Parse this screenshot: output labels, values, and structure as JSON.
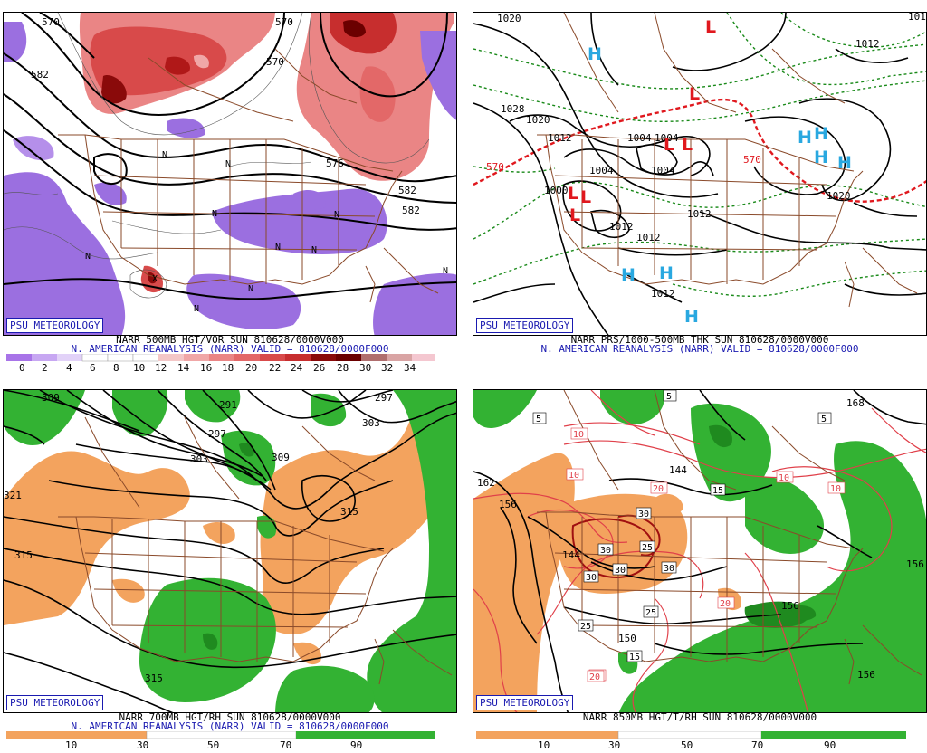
{
  "colors": {
    "positive_vort": [
      "#f4c7c7",
      "#f0a7a7",
      "#ea8585",
      "#e36868",
      "#d84a4a",
      "#c72e2e",
      "#b01818",
      "#8a0a0a",
      "#6b0000",
      "#d9a4a4",
      "#e6bcbc",
      "#f4d6d6"
    ],
    "negative_vort": "#9b6fe0",
    "rh_dry": "#f3a35e",
    "rh_moist": "#33b233",
    "rh_very_moist": "#1f8a1f",
    "border": "#8a4a2a",
    "label_blue": "#1a1ab0",
    "high": "#29a8e0",
    "low": "#e0181e",
    "thickness": "#1a8a1a"
  },
  "panels": [
    {
      "id": "vort500",
      "badge": "PSU METEOROLOGY",
      "title_line1": "NARR 500MB HGT/VOR SUN 810628/0000V000",
      "title_line2": "N. AMERICAN REANALYSIS (NARR) VALID = 810628/0000F000",
      "colorbar_labels": [
        "0",
        "2",
        "4",
        "6",
        "8",
        "10",
        "12",
        "14",
        "16",
        "18",
        "20",
        "22",
        "24",
        "26",
        "28",
        "30",
        "32",
        "34"
      ],
      "contour_labels": [
        "570",
        "582",
        "576",
        "582",
        "570",
        "582",
        "570"
      ],
      "feature_labels": [
        "N",
        "N",
        "N",
        "N",
        "N",
        "N",
        "N",
        "N",
        "N",
        "N",
        "X"
      ]
    },
    {
      "id": "prs_thk",
      "badge": "PSU METEOROLOGY",
      "title_line1": "NARR PRS/1000-500MB THK SUN 810628/0000V000",
      "title_line2": "N. AMERICAN REANALYSIS (NARR) VALID = 810628/0000F000",
      "contour_labels": [
        "1020",
        "1028",
        "1020",
        "1012",
        "1004",
        "1004",
        "1000",
        "1004",
        "1004",
        "1012",
        "1012",
        "1012",
        "1020",
        "1012",
        "1012",
        "1012",
        "570",
        "570"
      ],
      "highs": [
        "H",
        "H",
        "H",
        "H",
        "H",
        "H",
        "H",
        "H"
      ],
      "lows": [
        "L",
        "L",
        "L",
        "L",
        "L",
        "L",
        "L"
      ]
    },
    {
      "id": "rh700",
      "badge": "PSU METEOROLOGY",
      "title_line1": "NARR 700MB HGT/RH SUN 810628/0000V000",
      "title_line2": "N. AMERICAN REANALYSIS (NARR) VALID = 810628/0000F000",
      "colorbar_labels": [
        "10",
        "30",
        "50",
        "70",
        "90"
      ],
      "contour_labels": [
        "309",
        "291",
        "297",
        "303",
        "309",
        "303",
        "297",
        "315",
        "315",
        "321",
        "315"
      ]
    },
    {
      "id": "t850",
      "badge": "PSU METEOROLOGY",
      "title_line1": "NARR 850MB HGT/T/RH SUN 810628/0000V000",
      "title_line2": "",
      "colorbar_labels": [
        "10",
        "30",
        "50",
        "70",
        "90"
      ],
      "contour_labels": [
        "162",
        "156",
        "144",
        "150",
        "156",
        "156",
        "156",
        "144",
        "168"
      ],
      "temp_labels": [
        "5",
        "5",
        "5",
        "10",
        "10",
        "10",
        "10",
        "15",
        "20",
        "20",
        "20",
        "25",
        "25",
        "25",
        "30",
        "30",
        "30",
        "30",
        "30",
        "15",
        "20"
      ]
    }
  ]
}
